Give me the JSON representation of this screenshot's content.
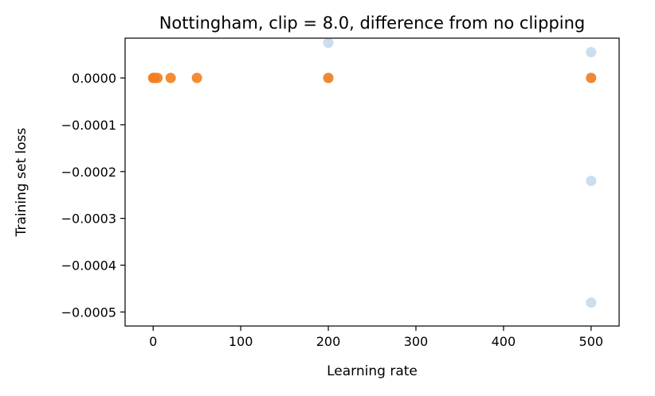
{
  "chart_data": {
    "type": "scatter",
    "title": "Nottingham, clip = 8.0, difference from no clipping",
    "xlabel": "Learning rate",
    "ylabel": "Training set loss",
    "xlim": [
      -32,
      532
    ],
    "ylim": [
      -0.00053,
      8.5e-05
    ],
    "xticks": [
      0,
      100,
      200,
      300,
      400,
      500
    ],
    "xtick_labels": [
      "0",
      "100",
      "200",
      "300",
      "400",
      "500"
    ],
    "yticks": [
      0.0,
      -0.0001,
      -0.0002,
      -0.0003,
      -0.0004,
      -0.0005
    ],
    "ytick_labels": [
      "0.0000",
      "−0.0001",
      "−0.0002",
      "−0.0003",
      "−0.0004",
      "−0.0005"
    ],
    "grid": false,
    "series": [
      {
        "color": "#a6c8e2",
        "opacity": 0.6,
        "points": [
          {
            "x": 200,
            "y": 7.5e-05
          },
          {
            "x": 500,
            "y": 5.5e-05
          },
          {
            "x": 500,
            "y": -0.00022
          },
          {
            "x": 500,
            "y": -0.00048
          },
          {
            "x": 0.1,
            "y": 0.0
          },
          {
            "x": 200,
            "y": 0.0
          },
          {
            "x": 500,
            "y": 0.0
          }
        ]
      },
      {
        "color": "#f28020",
        "opacity": 0.9,
        "points": [
          {
            "x": 0.1,
            "y": 0.0
          },
          {
            "x": 1,
            "y": 0.0
          },
          {
            "x": 2,
            "y": 0.0
          },
          {
            "x": 5,
            "y": 0.0
          },
          {
            "x": 20,
            "y": 0.0
          },
          {
            "x": 50,
            "y": 0.0
          },
          {
            "x": 200,
            "y": 0.0
          },
          {
            "x": 500,
            "y": 0.0
          }
        ]
      }
    ]
  }
}
